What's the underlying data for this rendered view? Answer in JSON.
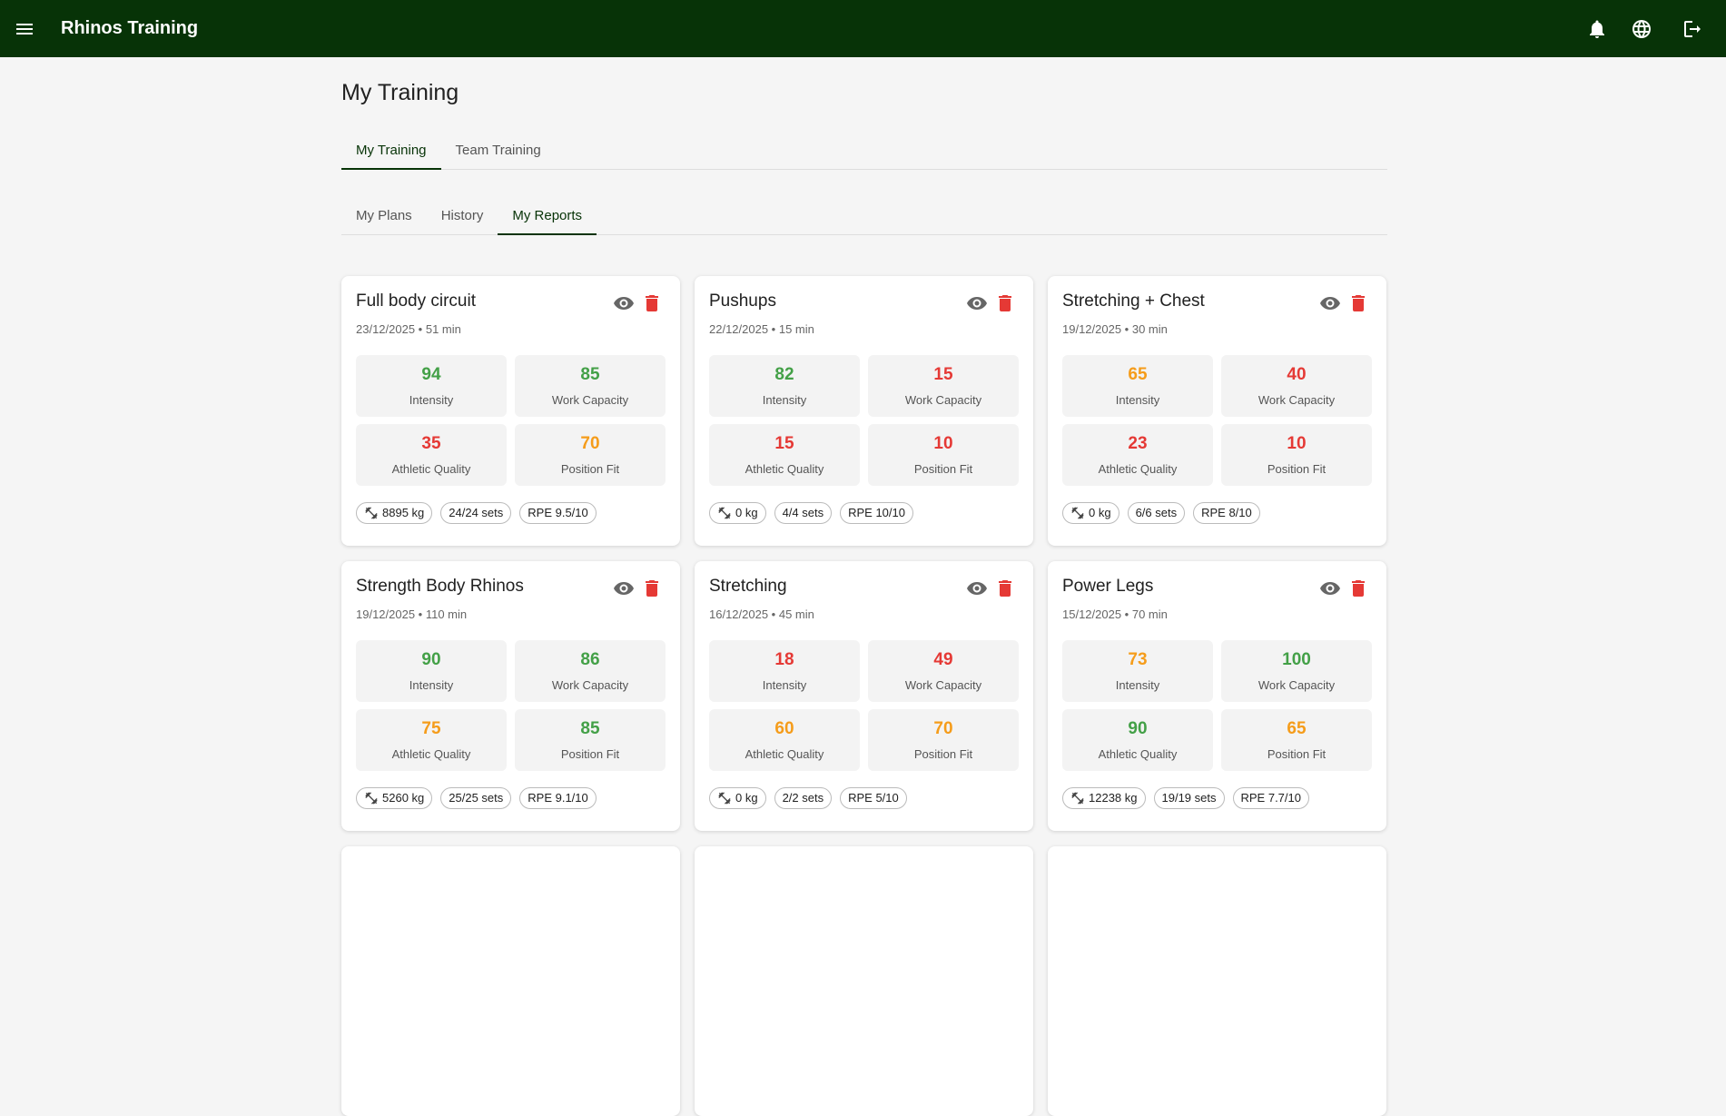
{
  "header": {
    "title": "Rhinos Training"
  },
  "page_title": "My Training",
  "tabs": [
    "My Training",
    "Team Training"
  ],
  "subtabs": [
    "My Plans",
    "History",
    "My Reports"
  ],
  "cards": [
    {
      "title": "Full body circuit",
      "meta": "23/12/2025 • 51 min",
      "metrics": [
        {
          "value": 94,
          "label": "Intensity"
        },
        {
          "value": 85,
          "label": "Work Capacity"
        },
        {
          "value": 35,
          "label": "Athletic Quality"
        },
        {
          "value": 70,
          "label": "Position Fit"
        }
      ],
      "chips": [
        "8895 kg",
        "24/24 sets",
        "RPE 9.5/10"
      ]
    },
    {
      "title": "Pushups",
      "meta": "22/12/2025 • 15 min",
      "metrics": [
        {
          "value": 82,
          "label": "Intensity"
        },
        {
          "value": 15,
          "label": "Work Capacity"
        },
        {
          "value": 15,
          "label": "Athletic Quality"
        },
        {
          "value": 10,
          "label": "Position Fit"
        }
      ],
      "chips": [
        "0 kg",
        "4/4 sets",
        "RPE 10/10"
      ]
    },
    {
      "title": "Stretching + Chest",
      "meta": "19/12/2025 • 30 min",
      "metrics": [
        {
          "value": 65,
          "label": "Intensity"
        },
        {
          "value": 40,
          "label": "Work Capacity"
        },
        {
          "value": 23,
          "label": "Athletic Quality"
        },
        {
          "value": 10,
          "label": "Position Fit"
        }
      ],
      "chips": [
        "0 kg",
        "6/6 sets",
        "RPE 8/10"
      ]
    },
    {
      "title": "Strength Body Rhinos",
      "meta": "19/12/2025 • 110 min",
      "metrics": [
        {
          "value": 90,
          "label": "Intensity"
        },
        {
          "value": 86,
          "label": "Work Capacity"
        },
        {
          "value": 75,
          "label": "Athletic Quality"
        },
        {
          "value": 85,
          "label": "Position Fit"
        }
      ],
      "chips": [
        "5260 kg",
        "25/25 sets",
        "RPE 9.1/10"
      ]
    },
    {
      "title": "Stretching",
      "meta": "16/12/2025 • 45 min",
      "metrics": [
        {
          "value": 18,
          "label": "Intensity"
        },
        {
          "value": 49,
          "label": "Work Capacity"
        },
        {
          "value": 60,
          "label": "Athletic Quality"
        },
        {
          "value": 70,
          "label": "Position Fit"
        }
      ],
      "chips": [
        "0 kg",
        "2/2 sets",
        "RPE 5/10"
      ]
    },
    {
      "title": "Power Legs",
      "meta": "15/12/2025 • 70 min",
      "metrics": [
        {
          "value": 73,
          "label": "Intensity"
        },
        {
          "value": 100,
          "label": "Work Capacity"
        },
        {
          "value": 90,
          "label": "Athletic Quality"
        },
        {
          "value": 65,
          "label": "Position Fit"
        }
      ],
      "chips": [
        "12238 kg",
        "19/19 sets",
        "RPE 7.7/10"
      ]
    }
  ]
}
